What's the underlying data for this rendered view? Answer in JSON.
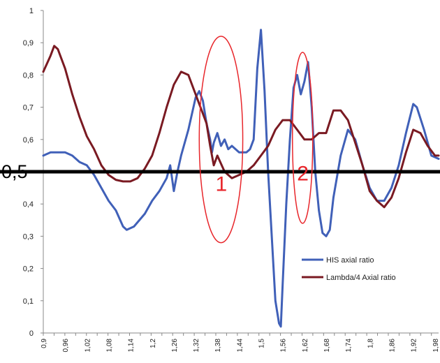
{
  "chart_data": {
    "type": "line",
    "title": "",
    "xlabel": "",
    "ylabel": "",
    "xlim": [
      0.9,
      1.99
    ],
    "ylim": [
      0,
      1
    ],
    "grid": false,
    "legend_position": "bottom-right",
    "y_ticks": [
      "0",
      "0,1",
      "0,2",
      "0,3",
      "0,4",
      "0,5",
      "0,6",
      "0,7",
      "0,8",
      "0,9",
      "1"
    ],
    "x_ticks": [
      {
        "v": 0.9,
        "label": "0,9"
      },
      {
        "v": 0.96,
        "label": "0,96"
      },
      {
        "v": 1.02,
        "label": "1,02"
      },
      {
        "v": 1.08,
        "label": "1,08"
      },
      {
        "v": 1.14,
        "label": "1,14"
      },
      {
        "v": 1.2,
        "label": "1,2"
      },
      {
        "v": 1.26,
        "label": "1,26"
      },
      {
        "v": 1.32,
        "label": "1,32"
      },
      {
        "v": 1.38,
        "label": "1,38"
      },
      {
        "v": 1.44,
        "label": "1,44"
      },
      {
        "v": 1.5,
        "label": "1,5"
      },
      {
        "v": 1.56,
        "label": "1,56"
      },
      {
        "v": 1.62,
        "label": "1,62"
      },
      {
        "v": 1.68,
        "label": "1,68"
      },
      {
        "v": 1.74,
        "label": "1,74"
      },
      {
        "v": 1.8,
        "label": "1,8"
      },
      {
        "v": 1.86,
        "label": "1,86"
      },
      {
        "v": 1.92,
        "label": "1,92"
      },
      {
        "v": 1.98,
        "label": "1,98"
      }
    ],
    "series": [
      {
        "name": "HIS  axial ratio",
        "color": "#4060b8",
        "points": [
          [
            0.9,
            0.55
          ],
          [
            0.92,
            0.56
          ],
          [
            0.94,
            0.56
          ],
          [
            0.96,
            0.56
          ],
          [
            0.98,
            0.55
          ],
          [
            1.0,
            0.53
          ],
          [
            1.02,
            0.52
          ],
          [
            1.04,
            0.49
          ],
          [
            1.06,
            0.45
          ],
          [
            1.08,
            0.41
          ],
          [
            1.1,
            0.38
          ],
          [
            1.12,
            0.33
          ],
          [
            1.13,
            0.32
          ],
          [
            1.15,
            0.33
          ],
          [
            1.18,
            0.37
          ],
          [
            1.2,
            0.41
          ],
          [
            1.22,
            0.44
          ],
          [
            1.24,
            0.48
          ],
          [
            1.245,
            0.5
          ],
          [
            1.25,
            0.52
          ],
          [
            1.255,
            0.48
          ],
          [
            1.26,
            0.44
          ],
          [
            1.27,
            0.5
          ],
          [
            1.28,
            0.55
          ],
          [
            1.3,
            0.63
          ],
          [
            1.32,
            0.73
          ],
          [
            1.33,
            0.75
          ],
          [
            1.34,
            0.72
          ],
          [
            1.35,
            0.65
          ],
          [
            1.36,
            0.6
          ],
          [
            1.365,
            0.56
          ],
          [
            1.37,
            0.59
          ],
          [
            1.38,
            0.62
          ],
          [
            1.39,
            0.58
          ],
          [
            1.4,
            0.6
          ],
          [
            1.41,
            0.57
          ],
          [
            1.42,
            0.58
          ],
          [
            1.44,
            0.56
          ],
          [
            1.46,
            0.56
          ],
          [
            1.47,
            0.57
          ],
          [
            1.48,
            0.6
          ],
          [
            1.49,
            0.82
          ],
          [
            1.5,
            0.94
          ],
          [
            1.51,
            0.75
          ],
          [
            1.52,
            0.5
          ],
          [
            1.53,
            0.3
          ],
          [
            1.54,
            0.1
          ],
          [
            1.55,
            0.03
          ],
          [
            1.555,
            0.02
          ],
          [
            1.56,
            0.15
          ],
          [
            1.57,
            0.4
          ],
          [
            1.58,
            0.6
          ],
          [
            1.59,
            0.76
          ],
          [
            1.6,
            0.8
          ],
          [
            1.61,
            0.74
          ],
          [
            1.62,
            0.78
          ],
          [
            1.63,
            0.84
          ],
          [
            1.64,
            0.7
          ],
          [
            1.65,
            0.5
          ],
          [
            1.66,
            0.38
          ],
          [
            1.67,
            0.31
          ],
          [
            1.68,
            0.3
          ],
          [
            1.69,
            0.32
          ],
          [
            1.7,
            0.42
          ],
          [
            1.72,
            0.55
          ],
          [
            1.74,
            0.63
          ],
          [
            1.76,
            0.6
          ],
          [
            1.78,
            0.52
          ],
          [
            1.8,
            0.45
          ],
          [
            1.82,
            0.41
          ],
          [
            1.84,
            0.41
          ],
          [
            1.86,
            0.45
          ],
          [
            1.88,
            0.52
          ],
          [
            1.9,
            0.62
          ],
          [
            1.92,
            0.71
          ],
          [
            1.93,
            0.7
          ],
          [
            1.95,
            0.63
          ],
          [
            1.97,
            0.55
          ],
          [
            1.99,
            0.54
          ]
        ]
      },
      {
        "name": "Lambda/4 Axial ratio",
        "color": "#7a1a22",
        "points": [
          [
            0.9,
            0.81
          ],
          [
            0.92,
            0.86
          ],
          [
            0.93,
            0.89
          ],
          [
            0.94,
            0.88
          ],
          [
            0.96,
            0.82
          ],
          [
            0.98,
            0.74
          ],
          [
            1.0,
            0.67
          ],
          [
            1.02,
            0.61
          ],
          [
            1.04,
            0.57
          ],
          [
            1.06,
            0.52
          ],
          [
            1.08,
            0.49
          ],
          [
            1.1,
            0.475
          ],
          [
            1.12,
            0.47
          ],
          [
            1.14,
            0.47
          ],
          [
            1.16,
            0.48
          ],
          [
            1.18,
            0.51
          ],
          [
            1.2,
            0.55
          ],
          [
            1.22,
            0.62
          ],
          [
            1.24,
            0.7
          ],
          [
            1.26,
            0.77
          ],
          [
            1.28,
            0.81
          ],
          [
            1.3,
            0.8
          ],
          [
            1.32,
            0.74
          ],
          [
            1.34,
            0.68
          ],
          [
            1.35,
            0.65
          ],
          [
            1.36,
            0.58
          ],
          [
            1.37,
            0.52
          ],
          [
            1.38,
            0.55
          ],
          [
            1.4,
            0.5
          ],
          [
            1.42,
            0.48
          ],
          [
            1.44,
            0.49
          ],
          [
            1.46,
            0.5
          ],
          [
            1.48,
            0.52
          ],
          [
            1.5,
            0.55
          ],
          [
            1.52,
            0.58
          ],
          [
            1.54,
            0.63
          ],
          [
            1.56,
            0.66
          ],
          [
            1.58,
            0.66
          ],
          [
            1.6,
            0.63
          ],
          [
            1.62,
            0.6
          ],
          [
            1.64,
            0.6
          ],
          [
            1.66,
            0.62
          ],
          [
            1.68,
            0.62
          ],
          [
            1.7,
            0.69
          ],
          [
            1.72,
            0.69
          ],
          [
            1.74,
            0.66
          ],
          [
            1.76,
            0.59
          ],
          [
            1.78,
            0.52
          ],
          [
            1.8,
            0.44
          ],
          [
            1.82,
            0.41
          ],
          [
            1.84,
            0.39
          ],
          [
            1.86,
            0.42
          ],
          [
            1.88,
            0.48
          ],
          [
            1.9,
            0.56
          ],
          [
            1.92,
            0.63
          ],
          [
            1.94,
            0.62
          ],
          [
            1.96,
            0.58
          ],
          [
            1.98,
            0.55
          ],
          [
            1.99,
            0.55
          ]
        ]
      }
    ],
    "reference_line": {
      "y": 0.5,
      "label": "0,5",
      "color": "#000000"
    },
    "annotations": [
      {
        "label": "1",
        "center": [
          1.39,
          0.6
        ],
        "rx": 0.06,
        "ry": 0.32,
        "color": "#e8262b"
      },
      {
        "label": "2",
        "center": [
          1.615,
          0.605
        ],
        "rx": 0.028,
        "ry": 0.265,
        "color": "#e8262b"
      }
    ]
  }
}
